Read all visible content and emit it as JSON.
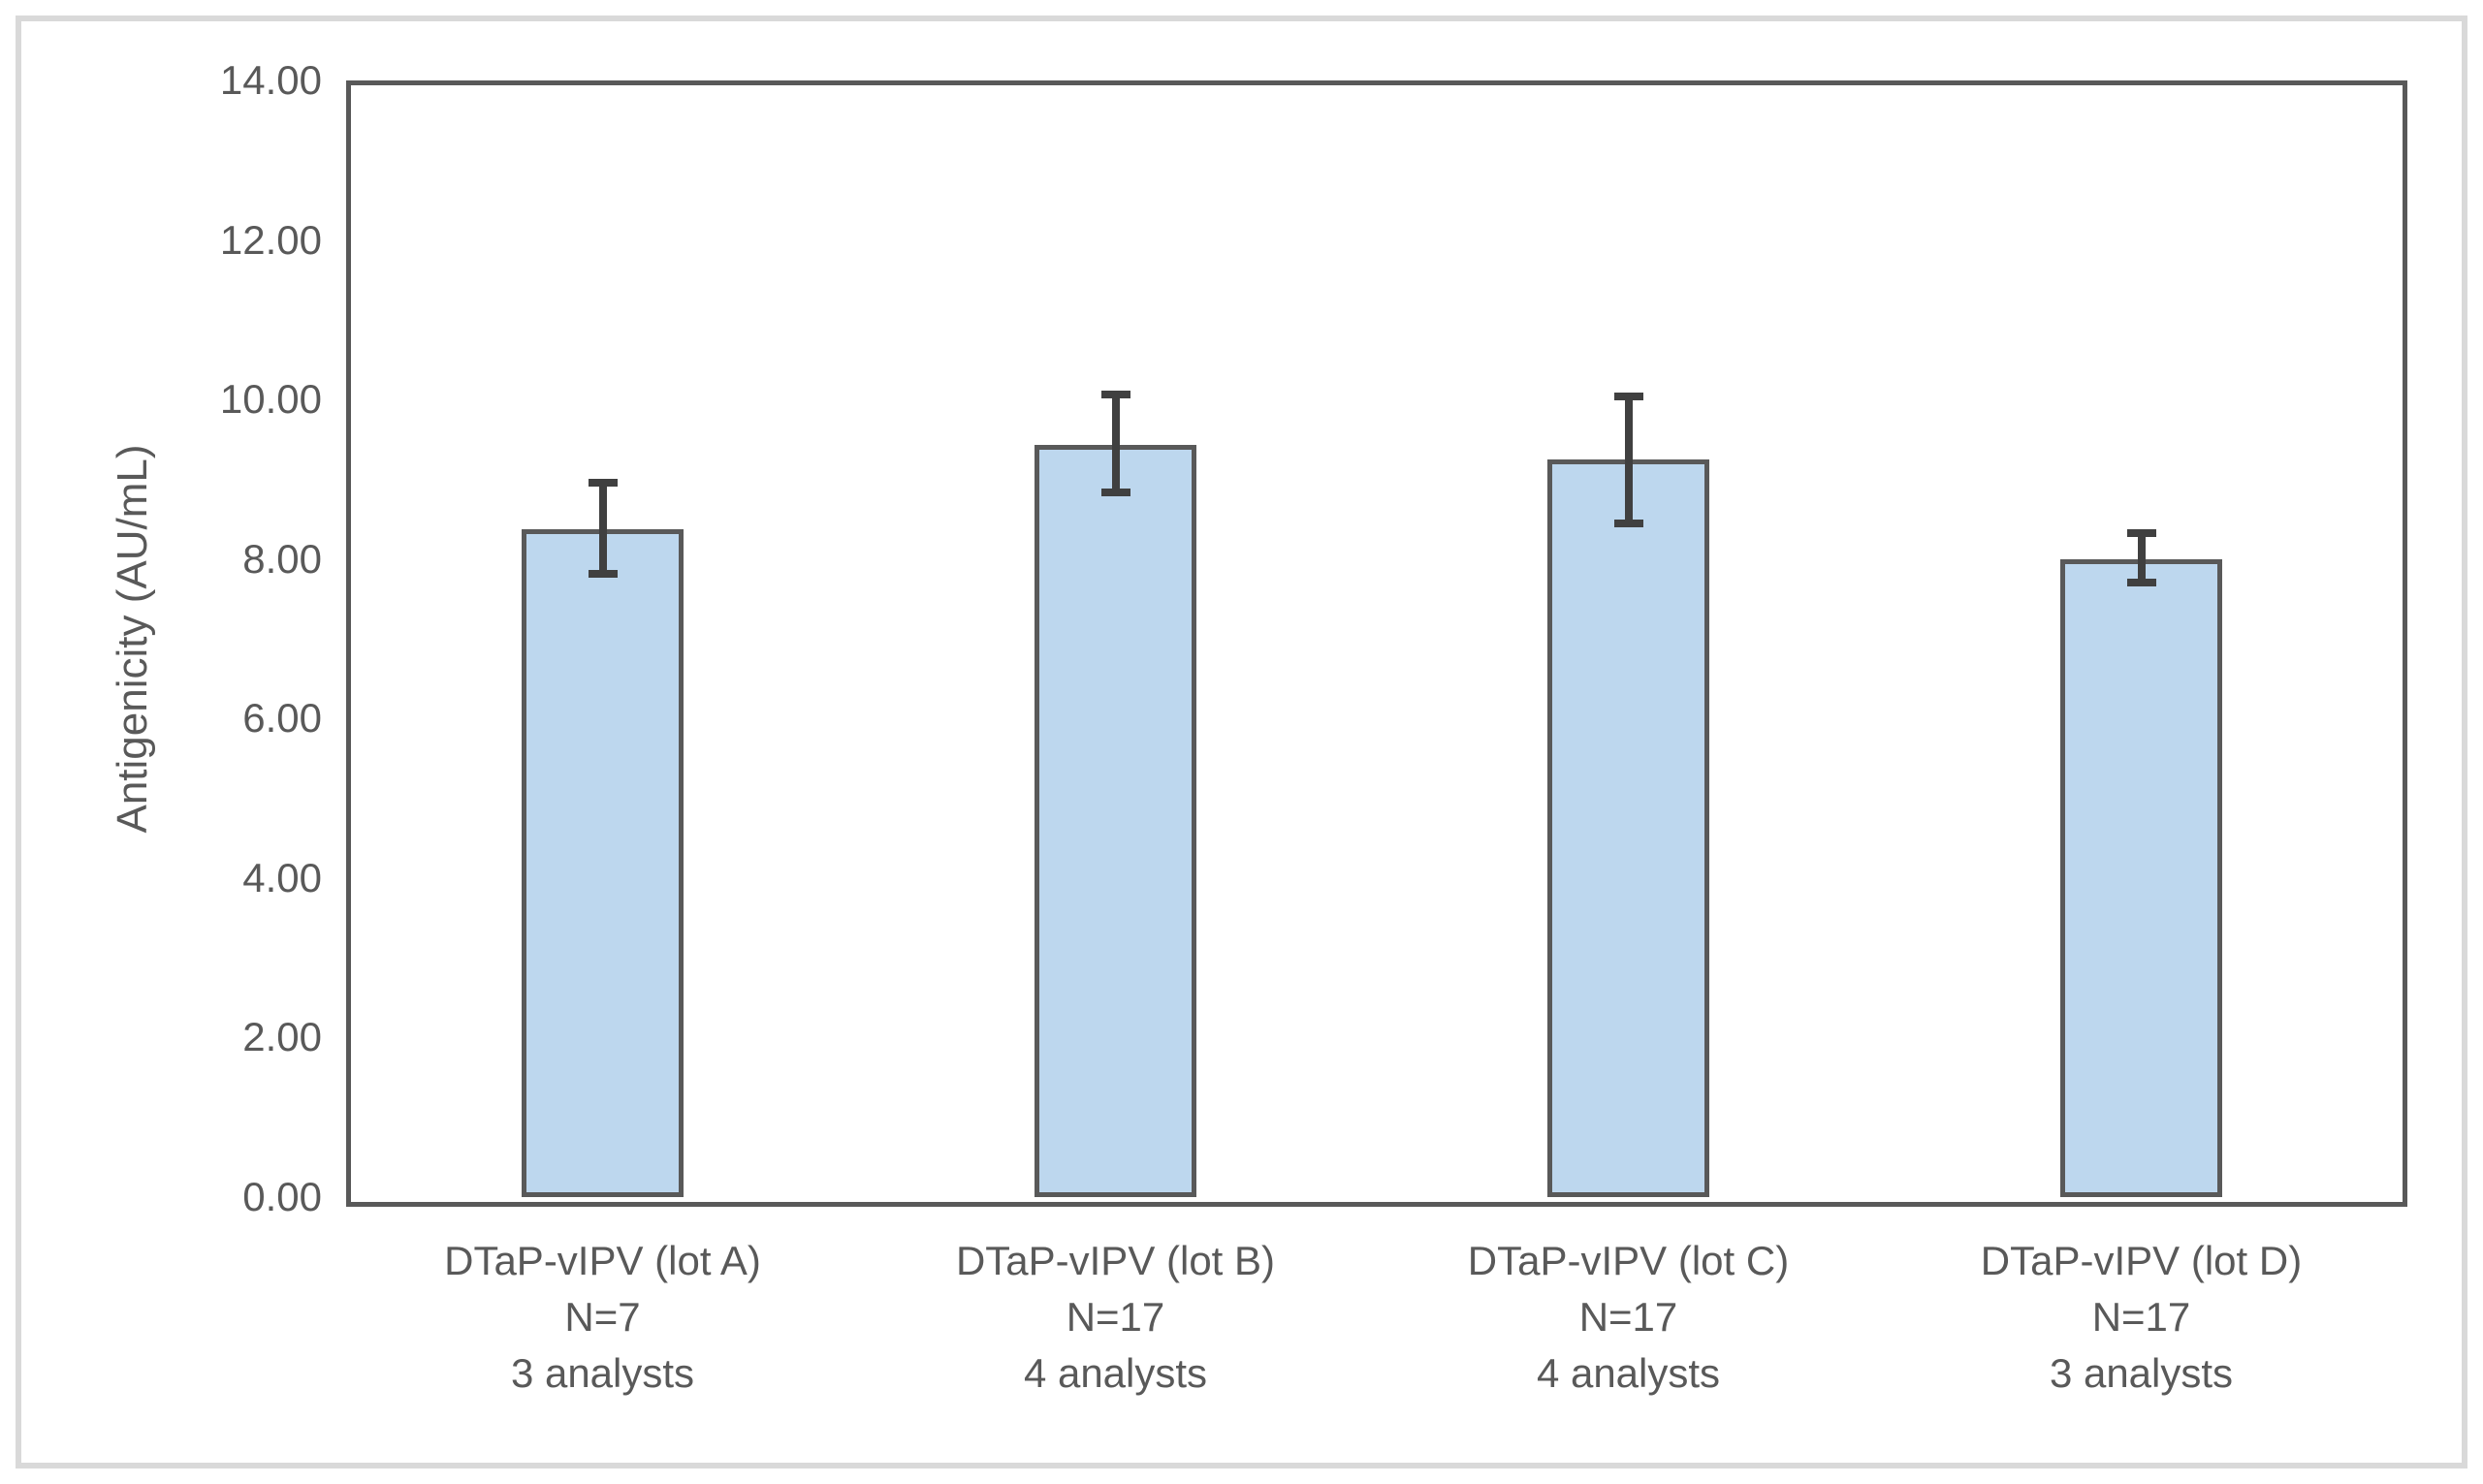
{
  "chart_data": {
    "type": "bar",
    "title": "",
    "xlabel": "",
    "ylabel": "Antigenicity (AU/mL)",
    "ylim": [
      0,
      14
    ],
    "ytick_step": 2,
    "ytick_labels": [
      "0.00",
      "2.00",
      "4.00",
      "6.00",
      "8.00",
      "10.00",
      "12.00",
      "14.00"
    ],
    "grid": false,
    "legend_position": "none",
    "categories": [
      {
        "label_lines": [
          "DTaP-vIPV (lot A)",
          "N=7",
          "3 analysts"
        ]
      },
      {
        "label_lines": [
          "DTaP-vIPV (lot B)",
          "N=17",
          "4 analysts"
        ]
      },
      {
        "label_lines": [
          "DTaP-vIPV (lot C)",
          "N=17",
          "4 analysts"
        ]
      },
      {
        "label_lines": [
          "DTaP-vIPV (lot D)",
          "N=17",
          "3 analysts"
        ]
      }
    ],
    "series": [
      {
        "name": "Antigenicity (AU/mL)",
        "values": [
          8.37,
          9.43,
          9.25,
          8.0
        ],
        "error_low": [
          7.81,
          8.84,
          8.45,
          7.7
        ],
        "error_high": [
          8.96,
          10.06,
          10.04,
          8.33
        ]
      }
    ],
    "colors": {
      "bar_fill": "#bdd7ee",
      "bar_border": "#595959",
      "error_bar": "#404040",
      "axis_text": "#595959",
      "plot_border": "#595959",
      "figure_frame": "#d9d9d9"
    }
  }
}
